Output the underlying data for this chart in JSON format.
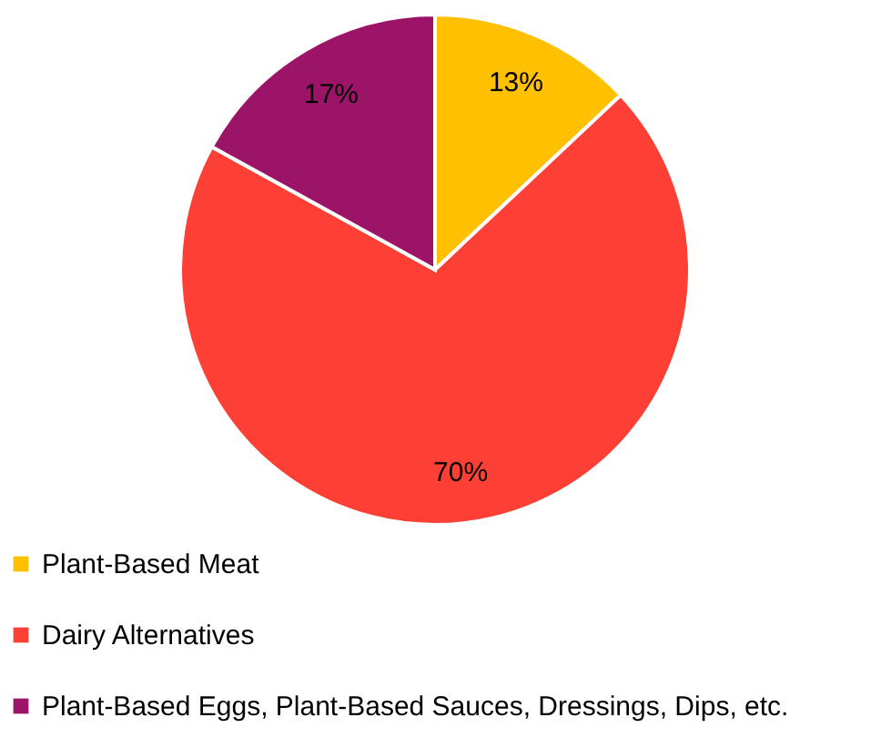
{
  "chart_data": {
    "type": "pie",
    "categories": [
      "Plant-Based Meat",
      "Dairy Alternatives",
      "Plant-Based Eggs, Plant-Based Sauces, Dressings, Dips, etc."
    ],
    "values": [
      13,
      70,
      17
    ],
    "colors": [
      "#ffc000",
      "#fd3f35",
      "#9c1468"
    ],
    "value_labels": [
      "13%",
      "70%",
      "17%"
    ],
    "legend": "bottom left"
  }
}
